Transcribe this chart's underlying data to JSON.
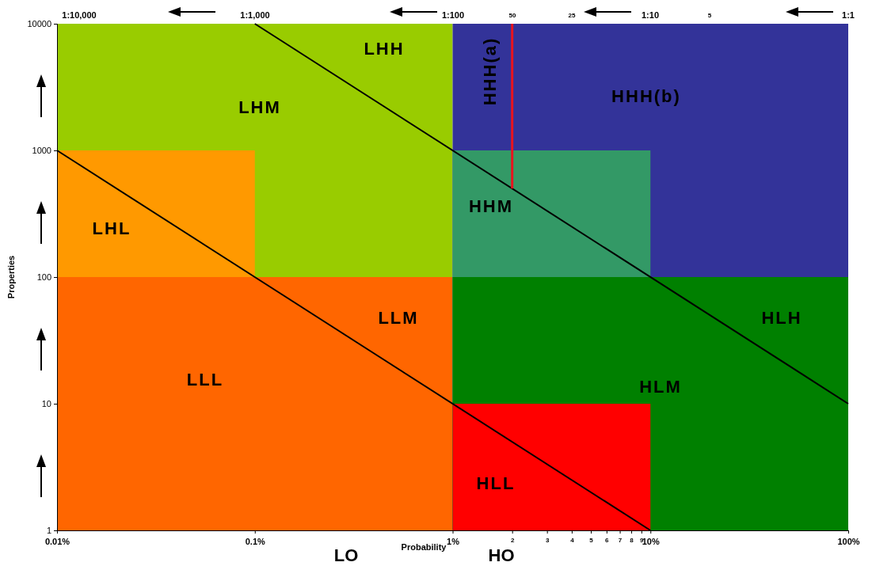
{
  "chart_data": {
    "type": "line",
    "xlabel": "Probability",
    "ylabel": "Properties",
    "log": "xy",
    "grid": false,
    "xlim": [
      0.01,
      100
    ],
    "ylim": [
      1,
      10000
    ],
    "xticks": [
      {
        "value": 0.01,
        "label": "0.01%"
      },
      {
        "value": 0.1,
        "label": "0.1%"
      },
      {
        "value": 1,
        "label": "1%"
      },
      {
        "value": 2,
        "label": "2"
      },
      {
        "value": 3,
        "label": "3"
      },
      {
        "value": 4,
        "label": "4"
      },
      {
        "value": 5,
        "label": "5"
      },
      {
        "value": 6,
        "label": "6"
      },
      {
        "value": 7,
        "label": "7"
      },
      {
        "value": 8,
        "label": "8"
      },
      {
        "value": 9,
        "label": "9"
      },
      {
        "value": 10,
        "label": "10%"
      },
      {
        "value": 100,
        "label": "100%"
      }
    ],
    "yticks": [
      1,
      10,
      100,
      1000,
      10000
    ],
    "series": [
      {
        "type": "area",
        "color": "#99cc00",
        "x": [
          0.01,
          1
        ],
        "values": [
          10000,
          10000
        ]
      },
      {
        "type": "area",
        "color": "#ff9900",
        "x": [
          0.01,
          0.1
        ],
        "values": [
          1000,
          1000
        ]
      },
      {
        "type": "area",
        "color": "#ff6600",
        "x": [
          0.01,
          1
        ],
        "values": [
          100,
          100
        ]
      },
      {
        "type": "area",
        "color": "#333399",
        "x": [
          1,
          100
        ],
        "values": [
          10000,
          10000
        ]
      },
      {
        "type": "area",
        "color": "#339966",
        "x": [
          1,
          10
        ],
        "values": [
          1000,
          1000
        ]
      },
      {
        "type": "area",
        "color": "#008000",
        "x": [
          1,
          100
        ],
        "values": [
          100,
          100
        ]
      },
      {
        "type": "area",
        "color": "#ff0000",
        "x": [
          1,
          10
        ],
        "values": [
          10,
          10
        ]
      },
      {
        "color": "#000000",
        "x": [
          0.1,
          100
        ],
        "values": [
          10000,
          10
        ]
      },
      {
        "color": "#000000",
        "x": [
          0.01,
          10
        ],
        "values": [
          1000,
          1
        ]
      },
      {
        "color": "#e8141e",
        "x": [
          2,
          2
        ],
        "values": [
          10000,
          500
        ]
      }
    ],
    "annotations": [
      "LHH",
      "LHM",
      "HHH(a)",
      "HHH(b)",
      "LHL",
      "HHM",
      "LLM",
      "HLH",
      "LLL",
      "HLM",
      "HLL",
      "LO",
      "HO",
      "1:10,000",
      "1:1,000",
      "1:100",
      "50",
      "25",
      "1:10",
      "5",
      "1:1"
    ]
  }
}
